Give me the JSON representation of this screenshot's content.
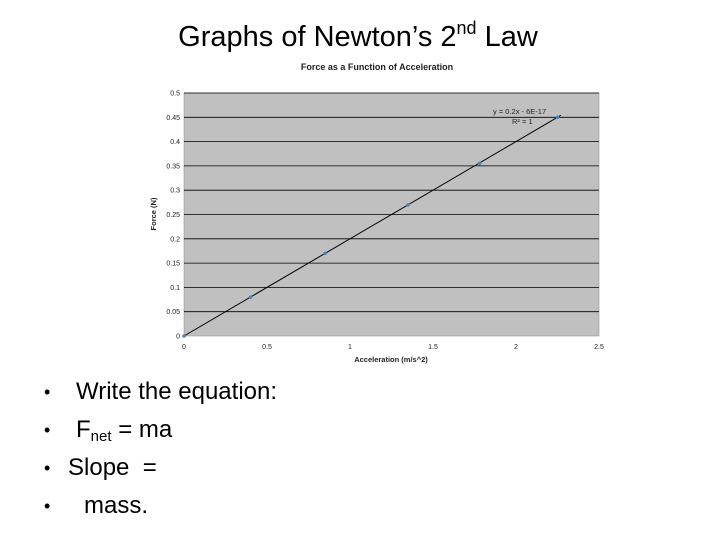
{
  "slide": {
    "title_main": "Graphs of Newton’s 2",
    "title_sup": "nd",
    "title_end": " Law"
  },
  "chart_data": {
    "type": "scatter",
    "title": "Force as a Function of Acceleration",
    "xlabel": "Acceleration (m/s^2)",
    "ylabel": "Force (N)",
    "xlim": [
      0,
      2.5
    ],
    "ylim": [
      0,
      0.5
    ],
    "x_ticks": [
      "0",
      "0.5",
      "1",
      "1.5",
      "2",
      "2.5"
    ],
    "y_ticks": [
      "0",
      "0.05",
      "0.1",
      "0.15",
      "0.2",
      "0.25",
      "0.3",
      "0.35",
      "0.4",
      "0.45",
      "0.5"
    ],
    "grid": "horizontal",
    "points": [
      {
        "x": 0,
        "y": 0
      },
      {
        "x": 0.4,
        "y": 0.08
      },
      {
        "x": 0.85,
        "y": 0.17
      },
      {
        "x": 1.35,
        "y": 0.27
      },
      {
        "x": 1.78,
        "y": 0.355
      },
      {
        "x": 2.25,
        "y": 0.45
      }
    ],
    "trendline": {
      "slope": 0.2,
      "intercept": 0,
      "x_range": [
        0,
        2.27
      ]
    },
    "annotations": {
      "equation": "y = 0.2x - 6E-17",
      "r_squared": "R² = 1"
    },
    "colors": {
      "plot_bg": "#c0c0c0",
      "grid": "#000000",
      "points": "#4f81bd",
      "trendline": "#000000"
    }
  },
  "bullets": [
    {
      "symbol": "•",
      "text": "Write the equation:"
    },
    {
      "symbol": "•",
      "text_pre": "F",
      "text_sub": "net",
      "text_post": " = ma"
    },
    {
      "symbol": "•",
      "text": "Slope  ="
    },
    {
      "symbol": "•",
      "text": "mass."
    }
  ]
}
